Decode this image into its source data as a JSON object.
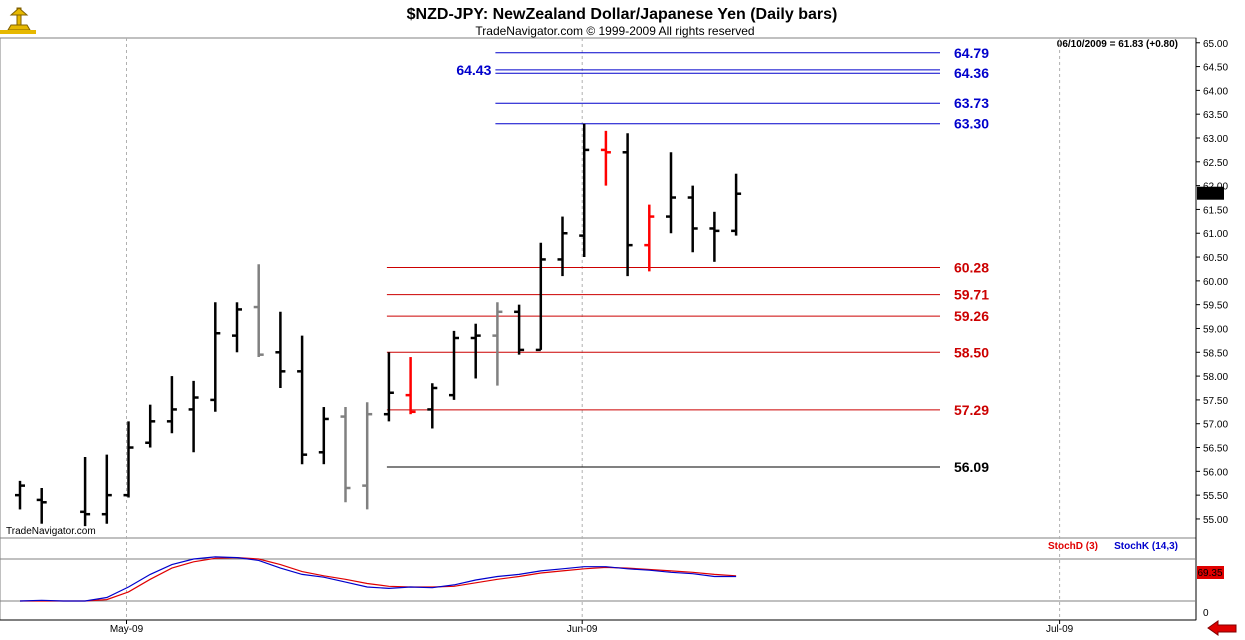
{
  "header": {
    "title": "$NZD-JPY:  NewZealand Dollar/Japanese Yen  (Daily bars)",
    "subtitle": "TradeNavigator.com © 1999-2009 All rights reserved",
    "status": "06/10/2009 = 61.83 (+0.80)",
    "watermark": "TradeNavigator.com"
  },
  "colors": {
    "up_bar": "#000000",
    "neutral_bar": "#808080",
    "down_bar": "#ff0000",
    "blue_level": "#0000cc",
    "red_level": "#cc0000",
    "black_level": "#000000",
    "stoch_d": "#e00000",
    "stoch_k": "#0000cc"
  },
  "chart_data": {
    "type": "ohlc",
    "price_axis": {
      "min": 54.6,
      "max": 65.1,
      "ticks": [
        "55.00",
        "55.50",
        "56.00",
        "56.50",
        "57.00",
        "57.50",
        "58.00",
        "58.50",
        "59.00",
        "59.50",
        "60.00",
        "60.50",
        "61.00",
        "61.50",
        "62.00",
        "62.50",
        "63.00",
        "63.50",
        "64.00",
        "64.50",
        "65.00"
      ],
      "last_price_label": "61.83",
      "last_price": 61.83
    },
    "date_axis": {
      "labels": [
        {
          "text": "May-09",
          "index": 5
        },
        {
          "text": "Jun-09",
          "index": 26
        },
        {
          "text": "Jul-09",
          "index": 48
        }
      ]
    },
    "bars": [
      {
        "o": 55.5,
        "h": 55.8,
        "l": 55.2,
        "c": 55.7,
        "s": "up"
      },
      {
        "o": 55.4,
        "h": 55.65,
        "l": 54.9,
        "c": 55.35,
        "s": "up"
      },
      {
        "o": null,
        "h": null,
        "l": null,
        "c": null,
        "s": "up"
      },
      {
        "o": 55.15,
        "h": 56.3,
        "l": 54.85,
        "c": 55.1,
        "s": "up"
      },
      {
        "o": 55.1,
        "h": 56.35,
        "l": 54.9,
        "c": 55.5,
        "s": "up"
      },
      {
        "o": 55.5,
        "h": 57.05,
        "l": 55.45,
        "c": 56.5,
        "s": "up"
      },
      {
        "o": 56.6,
        "h": 57.4,
        "l": 56.5,
        "c": 57.05,
        "s": "up"
      },
      {
        "o": 57.05,
        "h": 58.0,
        "l": 56.8,
        "c": 57.3,
        "s": "up"
      },
      {
        "o": 57.3,
        "h": 57.9,
        "l": 56.4,
        "c": 57.55,
        "s": "up"
      },
      {
        "o": 57.5,
        "h": 59.55,
        "l": 57.25,
        "c": 58.9,
        "s": "up"
      },
      {
        "o": 58.85,
        "h": 59.55,
        "l": 58.5,
        "c": 59.4,
        "s": "up"
      },
      {
        "o": 59.45,
        "h": 60.35,
        "l": 58.4,
        "c": 58.45,
        "s": "neutral"
      },
      {
        "o": 58.5,
        "h": 59.35,
        "l": 57.75,
        "c": 58.1,
        "s": "up"
      },
      {
        "o": 58.1,
        "h": 58.85,
        "l": 56.15,
        "c": 56.35,
        "s": "up"
      },
      {
        "o": 56.4,
        "h": 57.35,
        "l": 56.15,
        "c": 57.1,
        "s": "up"
      },
      {
        "o": 57.15,
        "h": 57.35,
        "l": 55.35,
        "c": 55.65,
        "s": "neutral"
      },
      {
        "o": 55.7,
        "h": 57.45,
        "l": 55.2,
        "c": 57.2,
        "s": "neutral"
      },
      {
        "o": 57.2,
        "h": 58.5,
        "l": 57.05,
        "c": 57.65,
        "s": "up"
      },
      {
        "o": 57.6,
        "h": 58.4,
        "l": 57.2,
        "c": 57.25,
        "s": "down"
      },
      {
        "o": 57.3,
        "h": 57.85,
        "l": 56.9,
        "c": 57.75,
        "s": "up"
      },
      {
        "o": 57.6,
        "h": 58.95,
        "l": 57.5,
        "c": 58.8,
        "s": "up"
      },
      {
        "o": 58.8,
        "h": 59.1,
        "l": 57.95,
        "c": 58.85,
        "s": "up"
      },
      {
        "o": 58.85,
        "h": 59.55,
        "l": 57.8,
        "c": 59.35,
        "s": "neutral"
      },
      {
        "o": 59.35,
        "h": 59.5,
        "l": 58.45,
        "c": 58.55,
        "s": "up"
      },
      {
        "o": 58.55,
        "h": 60.8,
        "l": 58.55,
        "c": 60.45,
        "s": "up"
      },
      {
        "o": 60.45,
        "h": 61.35,
        "l": 60.1,
        "c": 61.0,
        "s": "up"
      },
      {
        "o": 60.95,
        "h": 63.3,
        "l": 60.5,
        "c": 62.75,
        "s": "up"
      },
      {
        "o": 62.75,
        "h": 63.15,
        "l": 62.0,
        "c": 62.7,
        "s": "down"
      },
      {
        "o": 62.7,
        "h": 63.1,
        "l": 60.1,
        "c": 60.75,
        "s": "up"
      },
      {
        "o": 60.75,
        "h": 61.6,
        "l": 60.2,
        "c": 61.35,
        "s": "down"
      },
      {
        "o": 61.35,
        "h": 62.7,
        "l": 61.0,
        "c": 61.75,
        "s": "up"
      },
      {
        "o": 61.75,
        "h": 62.0,
        "l": 60.6,
        "c": 61.1,
        "s": "up"
      },
      {
        "o": 61.1,
        "h": 61.45,
        "l": 60.4,
        "c": 61.05,
        "s": "up"
      },
      {
        "o": 61.05,
        "h": 62.25,
        "l": 60.95,
        "c": 61.83,
        "s": "up"
      }
    ],
    "levels": [
      {
        "value": 64.79,
        "label": "64.79",
        "color": "blue",
        "start": 22
      },
      {
        "value": 64.43,
        "label": "64.43",
        "color": "blue",
        "start": 22,
        "side_label": "left"
      },
      {
        "value": 64.36,
        "label": "64.36",
        "color": "blue",
        "start": 22
      },
      {
        "value": 63.73,
        "label": "63.73",
        "color": "blue",
        "start": 22
      },
      {
        "value": 63.3,
        "label": "63.30",
        "color": "blue",
        "start": 22
      },
      {
        "value": 60.28,
        "label": "60.28",
        "color": "red",
        "start": 17
      },
      {
        "value": 59.71,
        "label": "59.71",
        "color": "red",
        "start": 17
      },
      {
        "value": 59.26,
        "label": "59.26",
        "color": "red",
        "start": 17
      },
      {
        "value": 58.5,
        "label": "58.50",
        "color": "red",
        "start": 17
      },
      {
        "value": 57.29,
        "label": "57.29",
        "color": "red",
        "start": 17
      },
      {
        "value": 56.09,
        "label": "56.09",
        "color": "black",
        "start": 17
      }
    ],
    "indicator": {
      "legend_d": "StochD (3)",
      "legend_k": "StochK (14,3)",
      "value_label": "69.35",
      "zero_label": "0",
      "range": [
        0,
        100
      ],
      "reference_lines": [
        20,
        80
      ],
      "stoch_k": [
        20,
        21,
        20,
        20,
        25,
        40,
        58,
        72,
        80,
        83,
        82,
        78,
        67,
        58,
        54,
        47,
        40,
        38,
        40,
        39,
        43,
        50,
        55,
        58,
        63,
        66,
        69,
        69,
        66,
        64,
        61,
        59,
        55,
        55
      ],
      "stoch_d": [
        20,
        20,
        20,
        20,
        22,
        33,
        51,
        67,
        76,
        81,
        82,
        80,
        72,
        62,
        56,
        51,
        45,
        41,
        40,
        40,
        41,
        46,
        51,
        55,
        60,
        63,
        66,
        68,
        67,
        65,
        63,
        61,
        58,
        56
      ]
    }
  }
}
